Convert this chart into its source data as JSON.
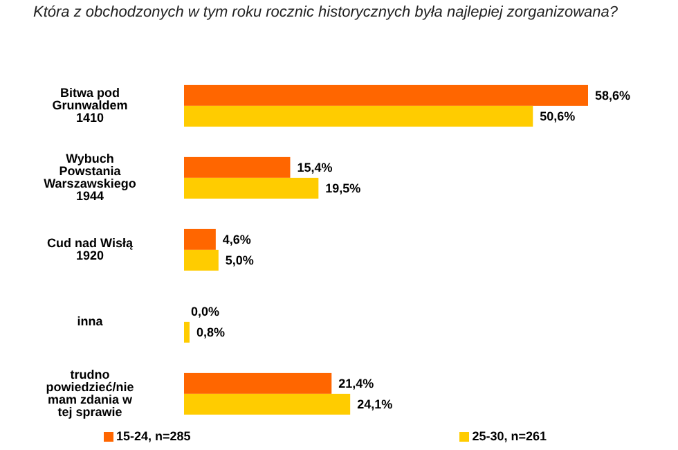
{
  "chart_data": {
    "type": "bar",
    "orientation": "horizontal",
    "title": "Która z obchodzonych w tym roku rocznic historycznych była najlepiej zorganizowana?",
    "categories": [
      "Bitwa pod Grunwaldem 1410",
      "Wybuch Powstania Warszawskiego 1944",
      "Cud nad Wisłą 1920",
      "inna",
      "trudno powiedzieć/nie mam zdania w tej sprawie"
    ],
    "series": [
      {
        "name": "15-24, n=285",
        "color": "#ff6600",
        "values": [
          58.6,
          15.4,
          4.6,
          0.0,
          21.4
        ],
        "value_labels": [
          "58,6%",
          "15,4%",
          "4,6%",
          "0,0%",
          "21,4%"
        ]
      },
      {
        "name": "25-30, n=261",
        "color": "#ffcc00",
        "values": [
          50.6,
          19.5,
          5.0,
          0.8,
          24.1
        ],
        "value_labels": [
          "50,6%",
          "19,5%",
          "5,0%",
          "0,8%",
          "24,1%"
        ]
      }
    ],
    "tick_labels": "y",
    "legend": "bottom"
  }
}
